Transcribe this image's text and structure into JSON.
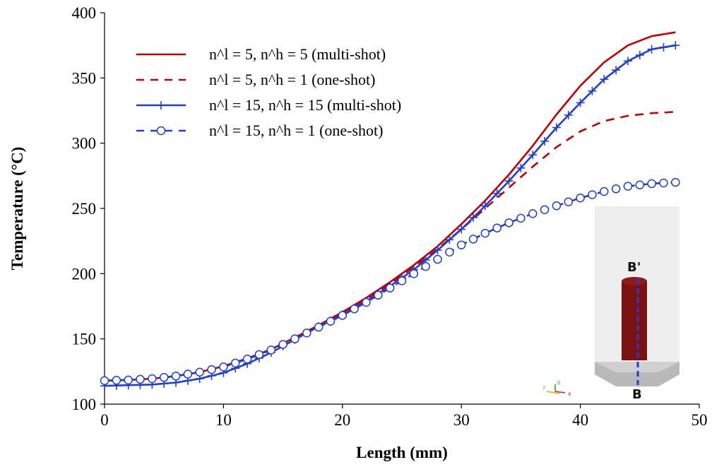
{
  "chart_data": {
    "type": "line",
    "xlabel": "Length (mm)",
    "ylabel": "Temperature (°C)",
    "xlim": [
      0,
      50
    ],
    "ylim": [
      100,
      400
    ],
    "xticks": [
      0,
      10,
      20,
      30,
      40,
      50
    ],
    "yticks": [
      100,
      150,
      200,
      250,
      300,
      350,
      400
    ],
    "grid": false,
    "legend_position": "top-left",
    "series": [
      {
        "name": "n^l = 5, n^h = 5 (multi-shot)",
        "color": "#c00000",
        "dash": "solid",
        "marker": "none",
        "x": [
          0,
          2,
          4,
          6,
          8,
          10,
          12,
          14,
          16,
          18,
          20,
          22,
          24,
          26,
          28,
          30,
          32,
          34,
          36,
          38,
          40,
          42,
          44,
          46,
          48
        ],
        "y": [
          118,
          118.5,
          119.5,
          121.5,
          124.5,
          129,
          135,
          142,
          151,
          160.5,
          170.5,
          181.5,
          193.5,
          206.5,
          221,
          238,
          256,
          276,
          298,
          322,
          344,
          362,
          375,
          382,
          385
        ]
      },
      {
        "name": "n^l = 5, n^h = 1 (one-shot)",
        "color": "#c00000",
        "dash": "dashed",
        "marker": "none",
        "x": [
          0,
          2,
          4,
          6,
          8,
          10,
          12,
          14,
          16,
          18,
          20,
          22,
          24,
          26,
          28,
          30,
          32,
          34,
          36,
          38,
          40,
          42,
          44,
          46,
          48
        ],
        "y": [
          118,
          118.5,
          119.5,
          121.5,
          124.5,
          129,
          135,
          142,
          151,
          160.5,
          170,
          180.5,
          192,
          205,
          219,
          234,
          250,
          266,
          282,
          297,
          309,
          317,
          321,
          323,
          324
        ]
      },
      {
        "name": "n^l = 15, n^h = 15 (multi-shot)",
        "color": "#1f3fcf",
        "dash": "solid",
        "marker": "plus",
        "x": [
          0,
          2,
          4,
          6,
          8,
          10,
          12,
          14,
          16,
          18,
          20,
          22,
          24,
          26,
          28,
          30,
          32,
          34,
          36,
          38,
          40,
          42,
          44,
          46,
          48
        ],
        "y": [
          114,
          114.5,
          115,
          116.5,
          119.5,
          124,
          131,
          139.5,
          149.5,
          159.5,
          168.5,
          179,
          190.5,
          203,
          218,
          234,
          252,
          271,
          291,
          312,
          331,
          349,
          363,
          372,
          375
        ]
      },
      {
        "name": "n^l = 15, n^h = 1 (one-shot)",
        "color": "#1f3fcf",
        "dash": "dashed",
        "marker": "circle",
        "x": [
          0,
          2,
          4,
          6,
          8,
          10,
          12,
          14,
          16,
          18,
          20,
          22,
          24,
          26,
          28,
          30,
          32,
          34,
          36,
          38,
          40,
          42,
          44,
          46,
          48
        ],
        "y": [
          118,
          118.5,
          119.5,
          121.5,
          124.5,
          128.5,
          134.5,
          141.5,
          150,
          159,
          168,
          178,
          189,
          200,
          211,
          222,
          231,
          239,
          246,
          252,
          258,
          263,
          267,
          269,
          270
        ]
      }
    ],
    "inset": {
      "labels": [
        "B'",
        "B"
      ],
      "axis_labels": [
        "y",
        "z",
        "x"
      ]
    }
  }
}
